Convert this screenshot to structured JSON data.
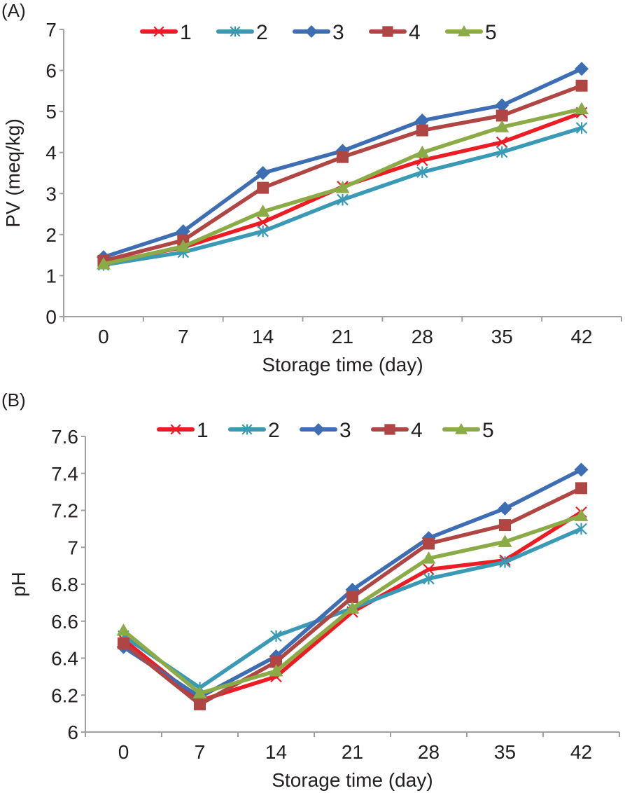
{
  "chart_data": [
    {
      "panel_label": "(A)",
      "type": "line",
      "title": "",
      "xlabel": "Storage time (day)",
      "ylabel": "PV (meq/kg)",
      "categories": [
        "0",
        "7",
        "14",
        "21",
        "28",
        "35",
        "42"
      ],
      "ylim": [
        0,
        7
      ],
      "yticks": [
        "0",
        "1",
        "2",
        "3",
        "4",
        "5",
        "6",
        "7"
      ],
      "grid": false,
      "legend_position": "top",
      "series": [
        {
          "name": "1",
          "marker": "x",
          "color": "#ed1c24",
          "values": [
            1.3,
            1.69,
            2.3,
            3.17,
            3.81,
            4.25,
            4.97
          ]
        },
        {
          "name": "2",
          "marker": "asterisk",
          "color": "#3a9ab5",
          "values": [
            1.26,
            1.57,
            2.08,
            2.85,
            3.52,
            4.01,
            4.6
          ]
        },
        {
          "name": "3",
          "marker": "diamond",
          "color": "#3d6eb4",
          "values": [
            1.45,
            2.08,
            3.5,
            4.04,
            4.78,
            5.15,
            6.04
          ]
        },
        {
          "name": "4",
          "marker": "square",
          "color": "#b04644",
          "values": [
            1.36,
            1.86,
            3.14,
            3.89,
            4.54,
            4.9,
            5.63
          ]
        },
        {
          "name": "5",
          "marker": "triangle",
          "color": "#8aab45",
          "values": [
            1.28,
            1.71,
            2.56,
            3.14,
            4.0,
            4.62,
            5.06
          ]
        }
      ]
    },
    {
      "panel_label": "(B)",
      "type": "line",
      "title": "",
      "xlabel": "Storage time (day)",
      "ylabel": "pH",
      "categories": [
        "0",
        "7",
        "14",
        "21",
        "28",
        "35",
        "42"
      ],
      "ylim": [
        6,
        7.6
      ],
      "yticks": [
        "6",
        "6.2",
        "6.4",
        "6.6",
        "6.8",
        "7",
        "7.2",
        "7.4",
        "7.6"
      ],
      "grid": false,
      "legend_position": "top",
      "series": [
        {
          "name": "1",
          "marker": "x",
          "color": "#ed1c24",
          "values": [
            6.5,
            6.17,
            6.3,
            6.65,
            6.88,
            6.93,
            7.19
          ]
        },
        {
          "name": "2",
          "marker": "asterisk",
          "color": "#3a9ab5",
          "values": [
            6.52,
            6.24,
            6.52,
            6.67,
            6.83,
            6.92,
            7.1
          ]
        },
        {
          "name": "3",
          "marker": "diamond",
          "color": "#3d6eb4",
          "values": [
            6.46,
            6.19,
            6.41,
            6.77,
            7.05,
            7.21,
            7.42
          ]
        },
        {
          "name": "4",
          "marker": "square",
          "color": "#b04644",
          "values": [
            6.48,
            6.15,
            6.38,
            6.73,
            7.02,
            7.12,
            7.32
          ]
        },
        {
          "name": "5",
          "marker": "triangle",
          "color": "#8aab45",
          "values": [
            6.55,
            6.21,
            6.33,
            6.67,
            6.94,
            7.03,
            7.17
          ]
        }
      ]
    }
  ]
}
